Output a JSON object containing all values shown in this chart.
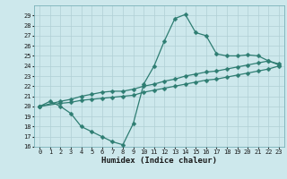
{
  "title": "",
  "xlabel": "Humidex (Indice chaleur)",
  "bg_color": "#cde8ec",
  "line_color": "#2e7d72",
  "grid_color": "#b0cfd4",
  "xlim": [
    -0.5,
    23.5
  ],
  "ylim": [
    16,
    30
  ],
  "xticks": [
    0,
    1,
    2,
    3,
    4,
    5,
    6,
    7,
    8,
    9,
    10,
    11,
    12,
    13,
    14,
    15,
    16,
    17,
    18,
    19,
    20,
    21,
    22,
    23
  ],
  "yticks": [
    16,
    17,
    18,
    19,
    20,
    21,
    22,
    23,
    24,
    25,
    26,
    27,
    28,
    29
  ],
  "line1_x": [
    0,
    1,
    2,
    3,
    4,
    5,
    6,
    7,
    8,
    9,
    10,
    11,
    12,
    13,
    14,
    15,
    16,
    17,
    18,
    19,
    20,
    21,
    22,
    23
  ],
  "line1_y": [
    20,
    20.5,
    20,
    19.3,
    18.0,
    17.5,
    17.0,
    16.5,
    16.2,
    18.3,
    22.2,
    24.0,
    26.5,
    28.7,
    29.1,
    27.3,
    27.0,
    25.2,
    25.0,
    25.0,
    25.1,
    25.0,
    24.5,
    24.1
  ],
  "line2_x": [
    0,
    2,
    3,
    4,
    5,
    6,
    7,
    8,
    9,
    10,
    11,
    12,
    13,
    14,
    15,
    16,
    17,
    18,
    19,
    20,
    21,
    22,
    23
  ],
  "line2_y": [
    20,
    20.5,
    20.7,
    21.0,
    21.2,
    21.4,
    21.5,
    21.5,
    21.7,
    22.0,
    22.2,
    22.5,
    22.7,
    23.0,
    23.2,
    23.4,
    23.5,
    23.7,
    23.9,
    24.1,
    24.3,
    24.5,
    24.2
  ],
  "line3_x": [
    0,
    2,
    3,
    4,
    5,
    6,
    7,
    8,
    9,
    10,
    11,
    12,
    13,
    14,
    15,
    16,
    17,
    18,
    19,
    20,
    21,
    22,
    23
  ],
  "line3_y": [
    20,
    20.3,
    20.4,
    20.6,
    20.7,
    20.8,
    20.9,
    21.0,
    21.1,
    21.4,
    21.6,
    21.8,
    22.0,
    22.2,
    22.4,
    22.6,
    22.7,
    22.9,
    23.1,
    23.3,
    23.5,
    23.7,
    24.0
  ],
  "markersize": 2.5,
  "linewidth": 0.9,
  "tick_fontsize": 5.0,
  "xlabel_fontsize": 6.5
}
